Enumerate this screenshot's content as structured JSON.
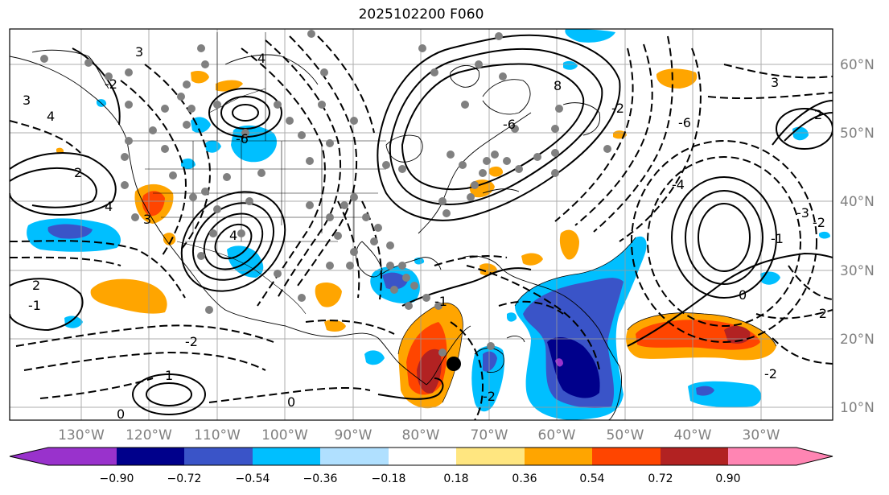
{
  "title": "2025102200 F060",
  "lon_labels": [
    "130°W",
    "120°W",
    "110°W",
    "100°W",
    "90°W",
    "80°W",
    "70°W",
    "60°W",
    "50°W",
    "40°W",
    "30°W"
  ],
  "lat_labels": [
    "60°N",
    "50°N",
    "40°N",
    "30°N",
    "20°N",
    "10°N"
  ],
  "colorbar": {
    "colors": [
      "#9932cc",
      "#00008b",
      "#3a54c8",
      "#00bfff",
      "#b0e0ff",
      "#ffffff",
      "#ffe680",
      "#ffa500",
      "#ff4500",
      "#b22222",
      "#ff85b3"
    ],
    "tick_labels": [
      "−0.90",
      "−0.72",
      "−0.54",
      "−0.36",
      "−0.18",
      "0.18",
      "0.36",
      "0.54",
      "0.72",
      "0.90"
    ]
  },
  "contour_labels": [
    "3",
    "4",
    "2",
    "4",
    "3",
    "-6",
    "-2",
    "4",
    "-6",
    "8",
    "-6",
    "-2",
    "3",
    "2",
    "-3",
    "-2",
    "-1",
    "2",
    "-1",
    "-2",
    "1",
    "0",
    "-1",
    "0",
    "0",
    "-2",
    "-2",
    "-4",
    "-2"
  ],
  "marker": {
    "color": "#000000"
  }
}
